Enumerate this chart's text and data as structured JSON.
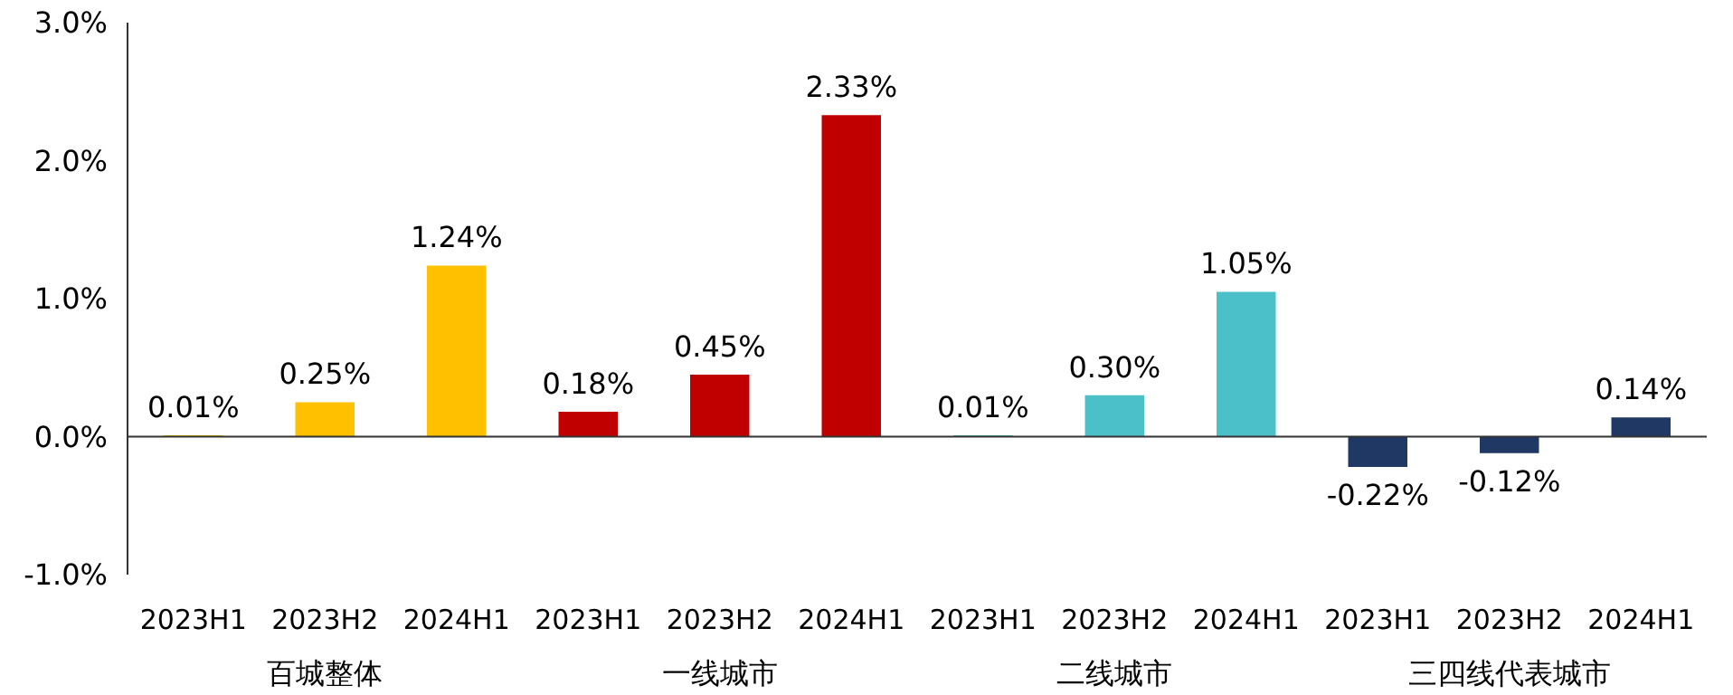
{
  "chart_data": {
    "type": "bar",
    "categories": [
      "2023H1",
      "2023H2",
      "2024H1",
      "2023H1",
      "2023H2",
      "2024H1",
      "2023H1",
      "2023H2",
      "2024H1",
      "2023H1",
      "2023H2",
      "2024H1"
    ],
    "values": [
      0.01,
      0.25,
      1.24,
      0.18,
      0.45,
      2.33,
      0.01,
      0.3,
      1.05,
      -0.22,
      -0.12,
      0.14
    ],
    "colors": [
      "#ffc000",
      "#ffc000",
      "#ffc000",
      "#c00000",
      "#c00000",
      "#c00000",
      "#4bc0c8",
      "#4bc0c8",
      "#4bc0c8",
      "#1f3864",
      "#1f3864",
      "#1f3864"
    ],
    "value_labels": [
      "0.01%",
      "0.25%",
      "1.24%",
      "0.18%",
      "0.45%",
      "2.33%",
      "0.01%",
      "0.30%",
      "1.05%",
      "-0.22%",
      "-0.12%",
      "0.14%"
    ],
    "annotations": [
      "百城整体",
      "一线城市",
      "二线城市",
      "三四线代表城市"
    ],
    "ylim": [
      -1,
      3
    ],
    "yticks": [
      {
        "value": -1,
        "label": "-1.0%"
      },
      {
        "value": 0,
        "label": "0.0%"
      },
      {
        "value": 1,
        "label": "1.0%"
      },
      {
        "value": 2,
        "label": "2.0%"
      },
      {
        "value": 3,
        "label": "3.0%"
      }
    ],
    "ref_lines": [
      {
        "axis": "y",
        "value": 0,
        "color": "#333333"
      }
    ],
    "grid": false
  }
}
